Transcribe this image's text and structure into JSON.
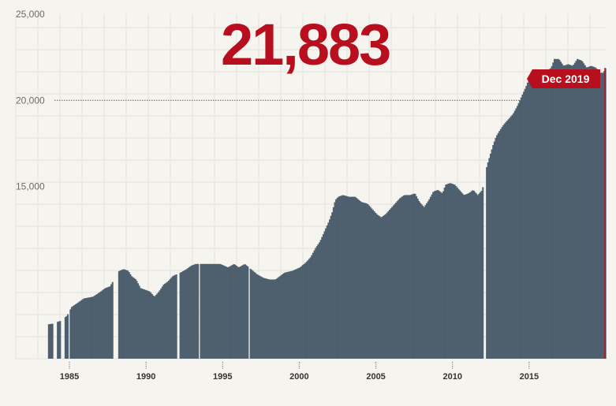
{
  "headline_value": "21,883",
  "colors": {
    "background": "#f6f4ef",
    "bars": "#4e5f6e",
    "accent": "#b80f1f",
    "grid": "#e4e2dc",
    "reference_line": "#4e5f6e"
  },
  "chart_data": {
    "type": "area",
    "title": "",
    "xlabel": "",
    "ylabel": "",
    "xlim": [
      1981.5,
      2020.0
    ],
    "ylim": [
      5000,
      25000
    ],
    "x_ticks": [
      1985,
      1990,
      1995,
      2000,
      2005,
      2010,
      2015
    ],
    "x_tick_labels": [
      "1985",
      "1990",
      "1995",
      "2000",
      "2005",
      "2010",
      "2015"
    ],
    "y_ticks": [
      15000,
      20000,
      25000
    ],
    "y_tick_labels": [
      "15,000",
      "20,000",
      "25,000"
    ],
    "reference_line": {
      "y": 20000
    },
    "highlight": {
      "label": "Dec 2019",
      "x": 2019.95,
      "value": 21883
    },
    "grid": true,
    "gaps": [
      [
        1983.9,
        1984.1
      ],
      [
        1984.4,
        1984.6
      ],
      [
        1984.9,
        1985.0
      ],
      [
        1987.8,
        1988.1
      ],
      [
        1992.0,
        1992.1
      ],
      [
        1993.4,
        1993.5
      ],
      [
        1996.6,
        1996.7
      ],
      [
        2012.0,
        2012.1
      ]
    ],
    "series": [
      {
        "name": "",
        "points": [
          [
            1983.6,
            7000
          ],
          [
            1984.0,
            7050
          ],
          [
            1984.2,
            7150
          ],
          [
            1984.4,
            7200
          ],
          [
            1984.6,
            7350
          ],
          [
            1984.8,
            7500
          ],
          [
            1985.1,
            8000
          ],
          [
            1985.5,
            8250
          ],
          [
            1985.9,
            8500
          ],
          [
            1986.5,
            8600
          ],
          [
            1987.0,
            8900
          ],
          [
            1987.3,
            9100
          ],
          [
            1987.6,
            9200
          ],
          [
            1988.2,
            10100
          ],
          [
            1988.5,
            10200
          ],
          [
            1988.8,
            10100
          ],
          [
            1989.0,
            9800
          ],
          [
            1989.3,
            9600
          ],
          [
            1989.6,
            9100
          ],
          [
            1989.9,
            9000
          ],
          [
            1990.2,
            8900
          ],
          [
            1990.5,
            8600
          ],
          [
            1990.8,
            8900
          ],
          [
            1991.1,
            9300
          ],
          [
            1991.4,
            9500
          ],
          [
            1991.7,
            9800
          ],
          [
            1992.2,
            10000
          ],
          [
            1992.6,
            10200
          ],
          [
            1992.9,
            10400
          ],
          [
            1993.2,
            10500
          ],
          [
            1993.6,
            10500
          ],
          [
            1994.2,
            10500
          ],
          [
            1994.8,
            10500
          ],
          [
            1995.3,
            10300
          ],
          [
            1995.7,
            10500
          ],
          [
            1996.0,
            10300
          ],
          [
            1996.4,
            10500
          ],
          [
            1996.8,
            10200
          ],
          [
            1997.2,
            9900
          ],
          [
            1997.6,
            9700
          ],
          [
            1998.0,
            9600
          ],
          [
            1998.4,
            9600
          ],
          [
            1998.7,
            9800
          ],
          [
            1999.0,
            10000
          ],
          [
            1999.5,
            10100
          ],
          [
            2000.0,
            10300
          ],
          [
            2000.4,
            10600
          ],
          [
            2000.7,
            10900
          ],
          [
            2001.0,
            11400
          ],
          [
            2001.3,
            11800
          ],
          [
            2001.6,
            12400
          ],
          [
            2001.9,
            13000
          ],
          [
            2002.1,
            13500
          ],
          [
            2002.3,
            14200
          ],
          [
            2002.5,
            14400
          ],
          [
            2002.8,
            14500
          ],
          [
            2003.2,
            14400
          ],
          [
            2003.6,
            14400
          ],
          [
            2004.0,
            14100
          ],
          [
            2004.4,
            14000
          ],
          [
            2004.7,
            13700
          ],
          [
            2005.0,
            13400
          ],
          [
            2005.3,
            13200
          ],
          [
            2005.6,
            13400
          ],
          [
            2005.9,
            13700
          ],
          [
            2006.2,
            14000
          ],
          [
            2006.5,
            14300
          ],
          [
            2006.8,
            14500
          ],
          [
            2007.2,
            14500
          ],
          [
            2007.5,
            14600
          ],
          [
            2007.8,
            14100
          ],
          [
            2008.1,
            13800
          ],
          [
            2008.4,
            14200
          ],
          [
            2008.7,
            14700
          ],
          [
            2009.0,
            14800
          ],
          [
            2009.3,
            14600
          ],
          [
            2009.5,
            15100
          ],
          [
            2009.8,
            15200
          ],
          [
            2010.1,
            15100
          ],
          [
            2010.4,
            14800
          ],
          [
            2010.7,
            14500
          ],
          [
            2011.0,
            14600
          ],
          [
            2011.3,
            14800
          ],
          [
            2011.6,
            14500
          ],
          [
            2011.9,
            14800
          ],
          [
            2012.2,
            16200
          ],
          [
            2012.4,
            16800
          ],
          [
            2012.6,
            17400
          ],
          [
            2012.8,
            17900
          ],
          [
            2013.0,
            18200
          ],
          [
            2013.3,
            18600
          ],
          [
            2013.6,
            18900
          ],
          [
            2013.9,
            19200
          ],
          [
            2014.2,
            19700
          ],
          [
            2014.5,
            20300
          ],
          [
            2014.8,
            20900
          ],
          [
            2015.0,
            21400
          ],
          [
            2015.2,
            21800
          ],
          [
            2015.5,
            21800
          ],
          [
            2015.8,
            21700
          ],
          [
            2016.1,
            21700
          ],
          [
            2016.4,
            21900
          ],
          [
            2016.6,
            22400
          ],
          [
            2016.9,
            22400
          ],
          [
            2017.2,
            22000
          ],
          [
            2017.5,
            22100
          ],
          [
            2017.8,
            22000
          ],
          [
            2018.1,
            22400
          ],
          [
            2018.4,
            22300
          ],
          [
            2018.7,
            21900
          ],
          [
            2019.0,
            22000
          ],
          [
            2019.3,
            21900
          ],
          [
            2019.6,
            21600
          ],
          [
            2019.8,
            21600
          ],
          [
            2019.95,
            21883
          ]
        ]
      }
    ]
  }
}
